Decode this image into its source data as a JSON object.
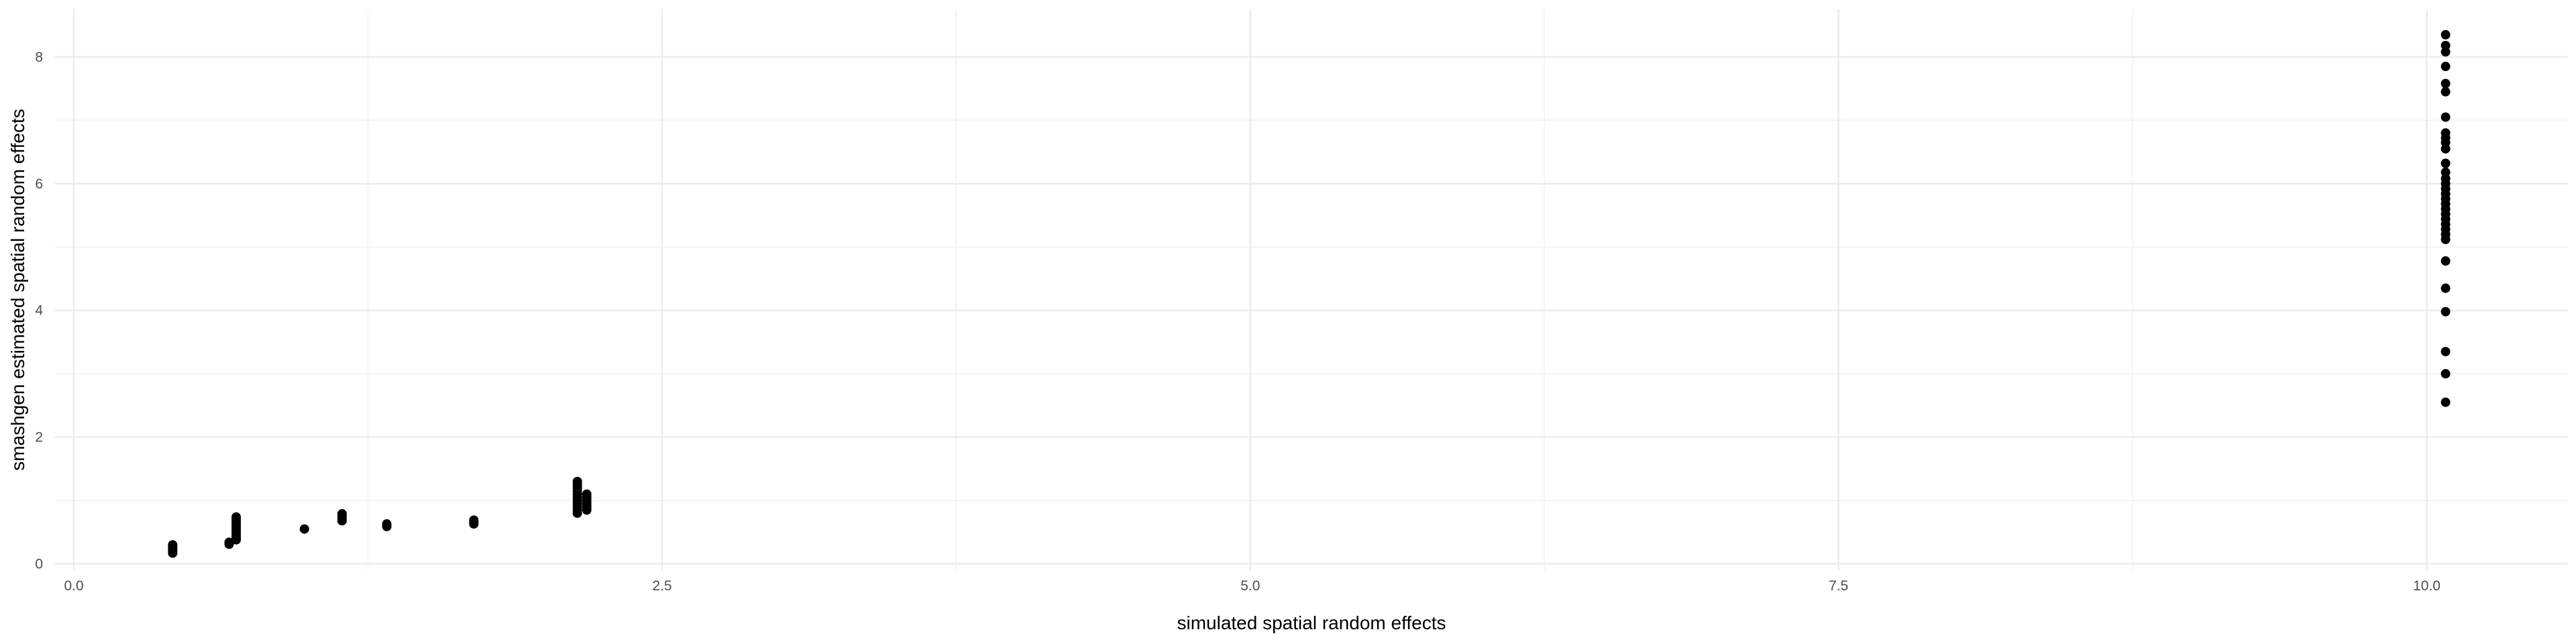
{
  "chart_data": {
    "type": "scatter",
    "title": "",
    "xlabel": "simulated spatial random effects",
    "ylabel": "smashgen estimated spatial random effects",
    "xlim": [
      -0.08,
      10.6
    ],
    "ylim": [
      -0.1,
      8.75
    ],
    "x_ticks": [
      0,
      2.5,
      5,
      7.5,
      10
    ],
    "x_tick_labels": [
      "0.0",
      "2.5",
      "5.0",
      "7.5",
      "10.0"
    ],
    "y_ticks": [
      0,
      2,
      4,
      6,
      8
    ],
    "y_tick_labels": [
      "0",
      "2",
      "4",
      "6",
      "8"
    ],
    "x_minor": [
      1.25,
      3.75,
      6.25,
      8.75
    ],
    "y_minor": [
      1,
      3,
      5,
      7
    ],
    "grid": true,
    "theme": "minimal",
    "colors": {
      "point": "#000000",
      "grid_major": "#ebebeb",
      "grid_minor": "#f4f4f4",
      "tick_text": "#4d4d4d",
      "axis_title": "#000000"
    },
    "points": [
      {
        "x": 0.42,
        "y": 0.17
      },
      {
        "x": 0.42,
        "y": 0.2
      },
      {
        "x": 0.42,
        "y": 0.24
      },
      {
        "x": 0.42,
        "y": 0.27
      },
      {
        "x": 0.42,
        "y": 0.3
      },
      {
        "x": 0.66,
        "y": 0.31
      },
      {
        "x": 0.66,
        "y": 0.34
      },
      {
        "x": 0.69,
        "y": 0.38
      },
      {
        "x": 0.69,
        "y": 0.42
      },
      {
        "x": 0.69,
        "y": 0.46
      },
      {
        "x": 0.69,
        "y": 0.5
      },
      {
        "x": 0.69,
        "y": 0.54
      },
      {
        "x": 0.69,
        "y": 0.58
      },
      {
        "x": 0.69,
        "y": 0.62
      },
      {
        "x": 0.69,
        "y": 0.66
      },
      {
        "x": 0.69,
        "y": 0.7
      },
      {
        "x": 0.69,
        "y": 0.74
      },
      {
        "x": 0.98,
        "y": 0.55
      },
      {
        "x": 1.14,
        "y": 0.68
      },
      {
        "x": 1.14,
        "y": 0.72
      },
      {
        "x": 1.14,
        "y": 0.76
      },
      {
        "x": 1.14,
        "y": 0.79
      },
      {
        "x": 1.33,
        "y": 0.59
      },
      {
        "x": 1.33,
        "y": 0.63
      },
      {
        "x": 1.7,
        "y": 0.63
      },
      {
        "x": 1.7,
        "y": 0.66
      },
      {
        "x": 1.7,
        "y": 0.69
      },
      {
        "x": 2.14,
        "y": 0.8
      },
      {
        "x": 2.14,
        "y": 0.85
      },
      {
        "x": 2.14,
        "y": 0.9
      },
      {
        "x": 2.14,
        "y": 0.95
      },
      {
        "x": 2.14,
        "y": 1.0
      },
      {
        "x": 2.14,
        "y": 1.05
      },
      {
        "x": 2.14,
        "y": 1.1
      },
      {
        "x": 2.14,
        "y": 1.15
      },
      {
        "x": 2.14,
        "y": 1.2
      },
      {
        "x": 2.14,
        "y": 1.25
      },
      {
        "x": 2.14,
        "y": 1.3
      },
      {
        "x": 2.18,
        "y": 0.85
      },
      {
        "x": 2.18,
        "y": 0.9
      },
      {
        "x": 2.18,
        "y": 0.95
      },
      {
        "x": 2.18,
        "y": 1.0
      },
      {
        "x": 2.18,
        "y": 1.05
      },
      {
        "x": 2.18,
        "y": 1.1
      },
      {
        "x": 10.08,
        "y": 2.55
      },
      {
        "x": 10.08,
        "y": 3.0
      },
      {
        "x": 10.08,
        "y": 3.35
      },
      {
        "x": 10.08,
        "y": 3.98
      },
      {
        "x": 10.08,
        "y": 4.35
      },
      {
        "x": 10.08,
        "y": 4.78
      },
      {
        "x": 10.08,
        "y": 5.12
      },
      {
        "x": 10.08,
        "y": 5.2
      },
      {
        "x": 10.08,
        "y": 5.28
      },
      {
        "x": 10.08,
        "y": 5.36
      },
      {
        "x": 10.08,
        "y": 5.44
      },
      {
        "x": 10.08,
        "y": 5.52
      },
      {
        "x": 10.08,
        "y": 5.6
      },
      {
        "x": 10.08,
        "y": 5.68
      },
      {
        "x": 10.08,
        "y": 5.76
      },
      {
        "x": 10.08,
        "y": 5.84
      },
      {
        "x": 10.08,
        "y": 5.92
      },
      {
        "x": 10.08,
        "y": 6.0
      },
      {
        "x": 10.08,
        "y": 6.08
      },
      {
        "x": 10.08,
        "y": 6.18
      },
      {
        "x": 10.08,
        "y": 6.32
      },
      {
        "x": 10.08,
        "y": 6.55
      },
      {
        "x": 10.08,
        "y": 6.65
      },
      {
        "x": 10.08,
        "y": 6.72
      },
      {
        "x": 10.08,
        "y": 6.8
      },
      {
        "x": 10.08,
        "y": 7.05
      },
      {
        "x": 10.08,
        "y": 7.45
      },
      {
        "x": 10.08,
        "y": 7.58
      },
      {
        "x": 10.08,
        "y": 7.85
      },
      {
        "x": 10.08,
        "y": 8.08
      },
      {
        "x": 10.08,
        "y": 8.18
      },
      {
        "x": 10.08,
        "y": 8.35
      }
    ]
  }
}
